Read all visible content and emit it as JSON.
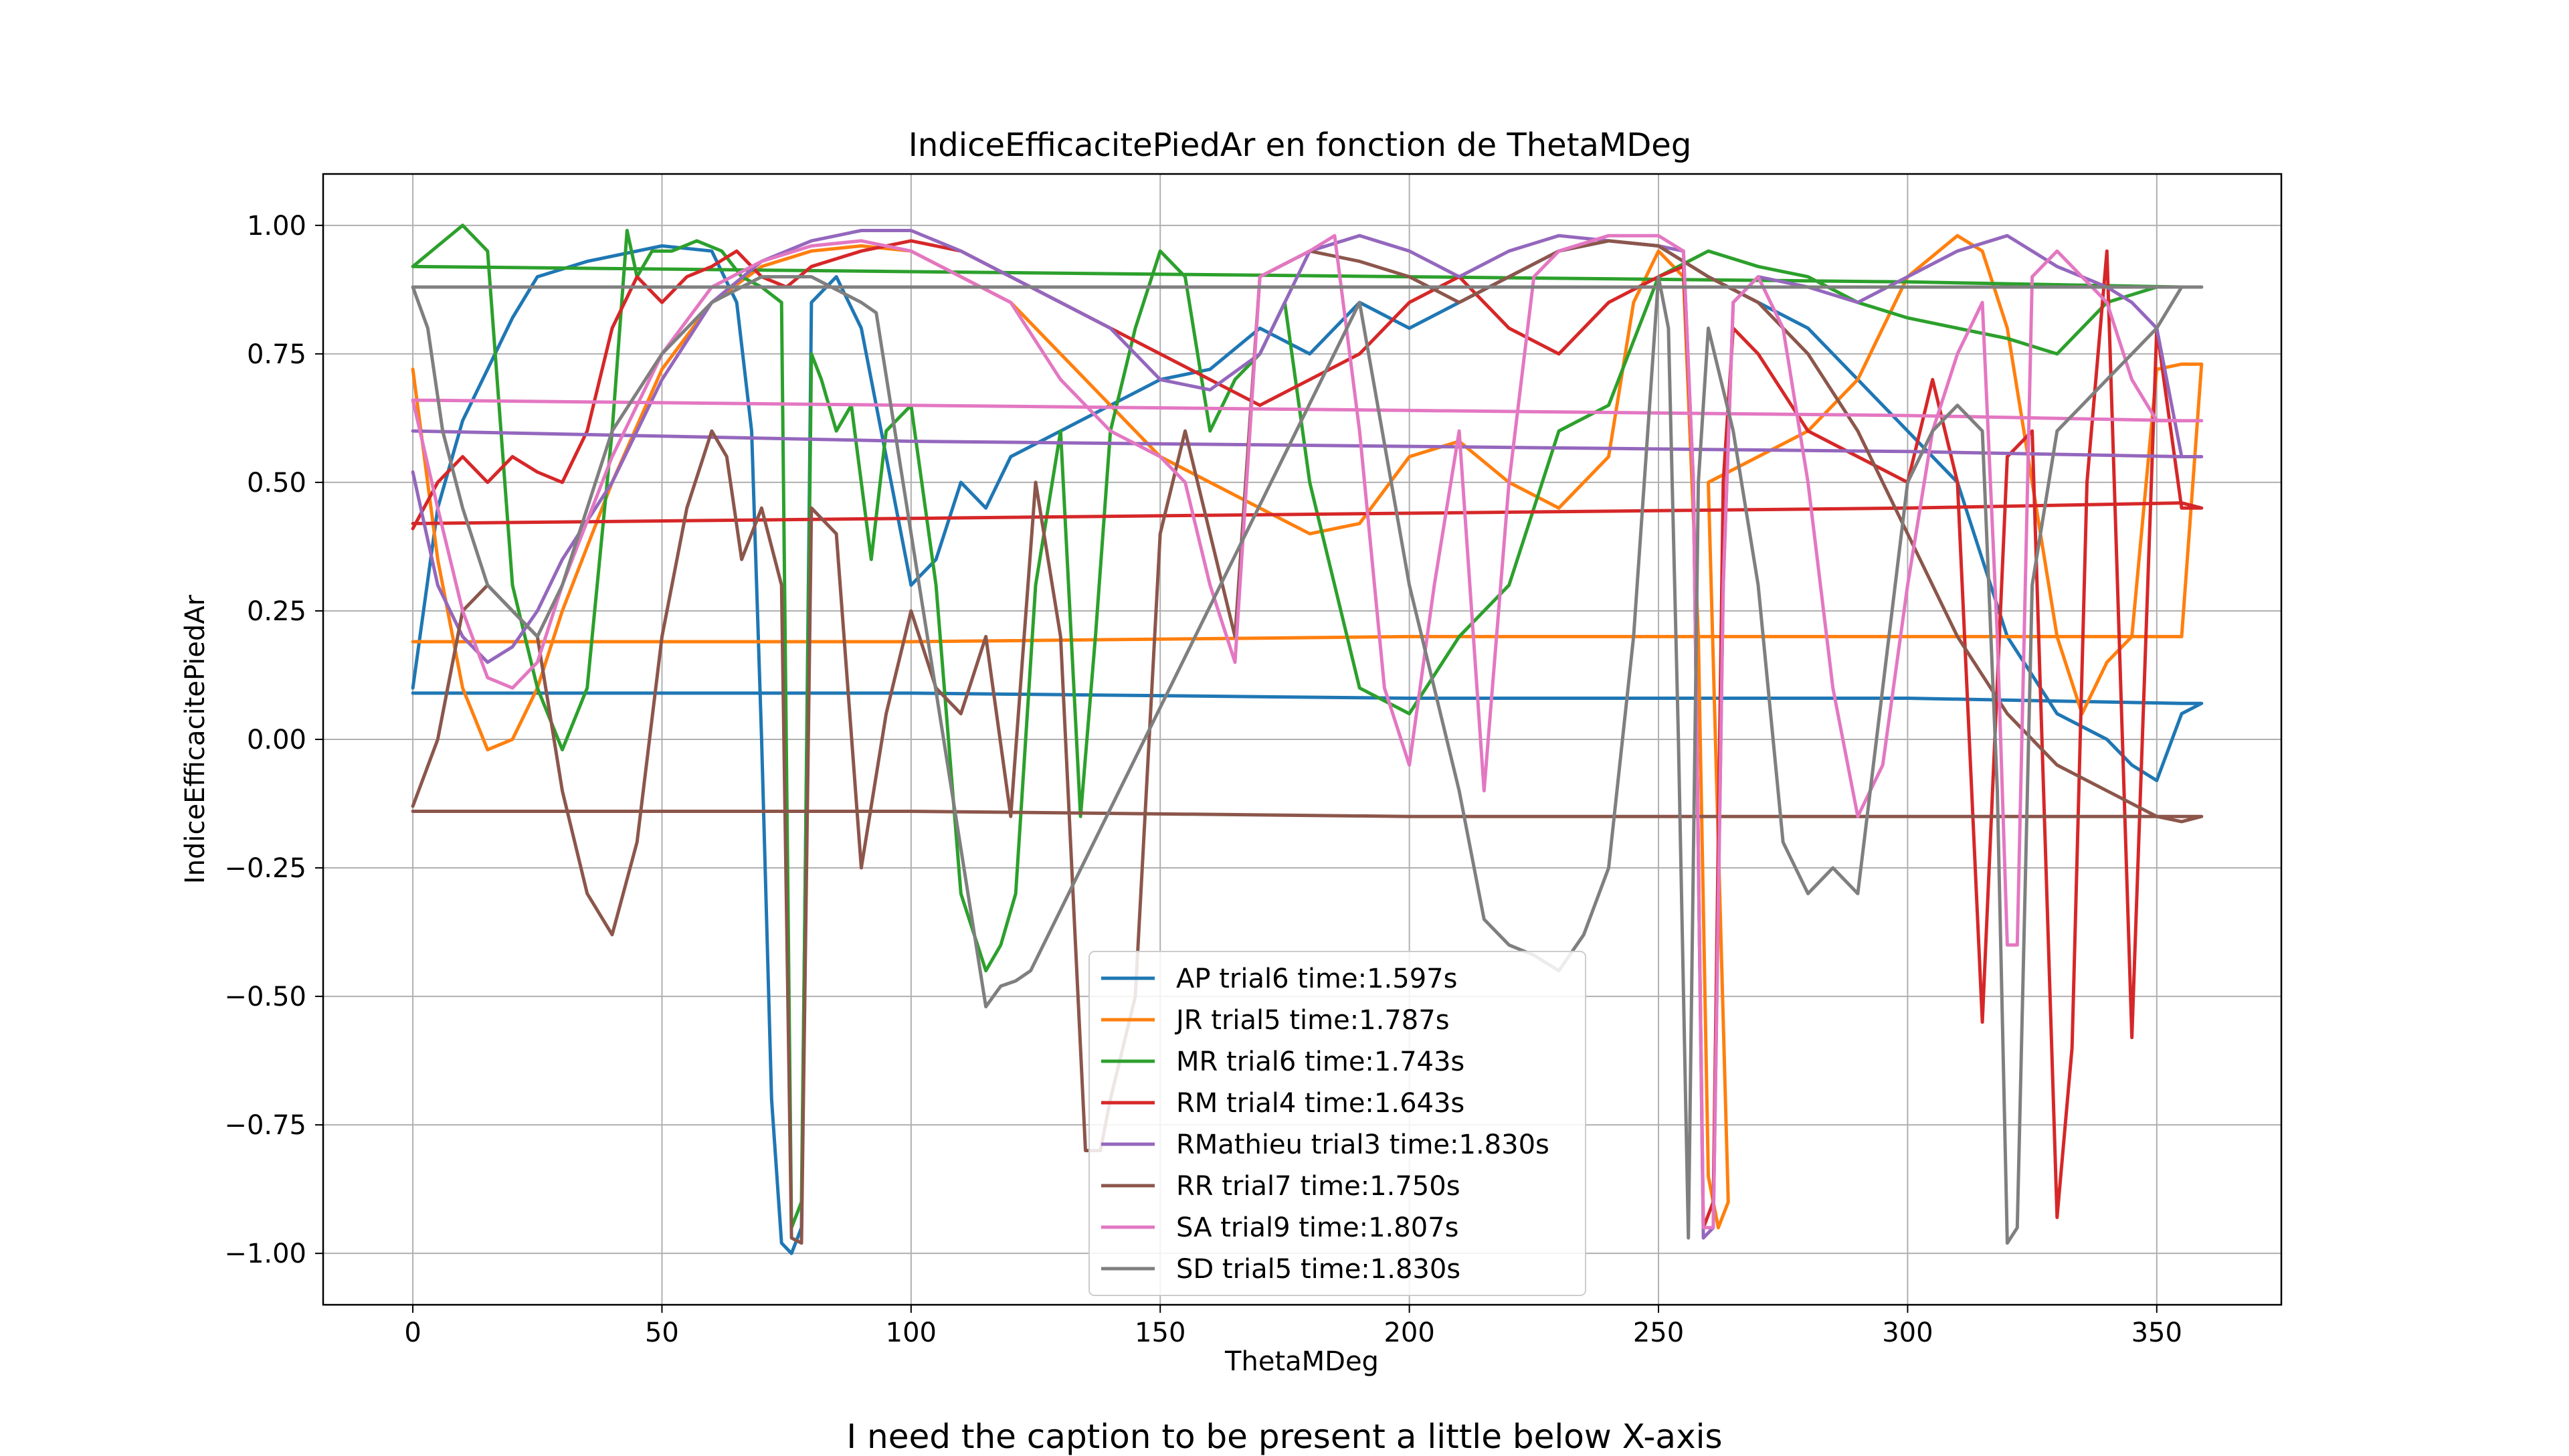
{
  "caption": "I need the caption to be present a little below X-axis",
  "chart_data": {
    "type": "line",
    "title": "IndiceEfficacitePiedAr en fonction de ThetaMDeg",
    "xlabel": "ThetaMDeg",
    "ylabel": "IndiceEfficacitePiedAr",
    "xlim": [
      -18,
      375
    ],
    "ylim": [
      -1.1,
      1.1
    ],
    "xticks": [
      0,
      50,
      100,
      150,
      200,
      250,
      300,
      350
    ],
    "xtick_labels": [
      "0",
      "50",
      "100",
      "150",
      "200",
      "250",
      "300",
      "350"
    ],
    "yticks": [
      -1.0,
      -0.75,
      -0.5,
      -0.25,
      0.0,
      0.25,
      0.5,
      0.75,
      1.0
    ],
    "ytick_labels": [
      "−1.00",
      "−0.75",
      "−0.50",
      "−0.25",
      "0.00",
      "0.25",
      "0.50",
      "0.75",
      "1.00"
    ],
    "grid": true,
    "legend_position": "lower-center",
    "series": [
      {
        "name": "AP trial6 time:1.597s",
        "color": "#1f77b4",
        "x": [
          0,
          5,
          10,
          15,
          20,
          25,
          35,
          50,
          60,
          65,
          68,
          70,
          72,
          74,
          76,
          78,
          80,
          85,
          90,
          95,
          100,
          105,
          110,
          115,
          120,
          130,
          140,
          150,
          160,
          170,
          180,
          190,
          200,
          210,
          220,
          230,
          240,
          250,
          260,
          270,
          280,
          290,
          300,
          310,
          320,
          330,
          340,
          345,
          350,
          355,
          359,
          355,
          300,
          200,
          100,
          0
        ],
        "y": [
          0.1,
          0.45,
          0.62,
          0.72,
          0.82,
          0.9,
          0.93,
          0.96,
          0.95,
          0.85,
          0.6,
          0.0,
          -0.7,
          -0.98,
          -1.0,
          -0.95,
          0.85,
          0.9,
          0.8,
          0.55,
          0.3,
          0.35,
          0.5,
          0.45,
          0.55,
          0.6,
          0.65,
          0.7,
          0.72,
          0.8,
          0.75,
          0.85,
          0.8,
          0.85,
          0.9,
          0.95,
          0.97,
          0.96,
          0.9,
          0.85,
          0.8,
          0.7,
          0.6,
          0.5,
          0.2,
          0.05,
          0.0,
          -0.05,
          -0.08,
          0.05,
          0.07,
          0.07,
          0.08,
          0.08,
          0.09,
          0.09
        ]
      },
      {
        "name": "JR trial5 time:1.787s",
        "color": "#ff7f0e",
        "x": [
          0,
          5,
          10,
          15,
          20,
          25,
          30,
          40,
          50,
          60,
          70,
          80,
          90,
          100,
          110,
          120,
          130,
          140,
          150,
          160,
          170,
          180,
          190,
          200,
          210,
          220,
          230,
          240,
          245,
          250,
          255,
          258,
          260,
          262,
          264,
          260,
          270,
          280,
          290,
          300,
          310,
          315,
          320,
          325,
          330,
          335,
          340,
          345,
          350,
          355,
          359,
          355,
          300,
          200,
          100,
          0
        ],
        "y": [
          0.72,
          0.35,
          0.1,
          -0.02,
          0.0,
          0.1,
          0.25,
          0.5,
          0.72,
          0.85,
          0.92,
          0.95,
          0.96,
          0.95,
          0.9,
          0.85,
          0.75,
          0.65,
          0.55,
          0.5,
          0.45,
          0.4,
          0.42,
          0.55,
          0.58,
          0.5,
          0.45,
          0.55,
          0.85,
          0.95,
          0.9,
          0.2,
          -0.85,
          -0.95,
          -0.9,
          0.5,
          0.55,
          0.6,
          0.7,
          0.9,
          0.98,
          0.95,
          0.8,
          0.5,
          0.2,
          0.05,
          0.15,
          0.2,
          0.72,
          0.73,
          0.73,
          0.2,
          0.2,
          0.2,
          0.19,
          0.19
        ]
      },
      {
        "name": "MR trial6 time:1.743s",
        "color": "#2ca02c",
        "x": [
          0,
          5,
          10,
          15,
          20,
          25,
          30,
          35,
          40,
          43,
          45,
          48,
          52,
          57,
          62,
          66,
          70,
          74,
          76,
          78,
          80,
          82,
          85,
          88,
          92,
          95,
          100,
          105,
          110,
          115,
          118,
          121,
          125,
          130,
          134,
          137,
          140,
          145,
          150,
          155,
          160,
          165,
          170,
          175,
          180,
          190,
          200,
          210,
          220,
          230,
          240,
          250,
          260,
          270,
          280,
          290,
          300,
          310,
          320,
          330,
          340,
          350,
          355,
          359,
          355,
          300,
          200,
          100,
          0
        ],
        "y": [
          0.92,
          0.96,
          1.0,
          0.95,
          0.3,
          0.1,
          -0.02,
          0.1,
          0.6,
          0.99,
          0.9,
          0.95,
          0.95,
          0.97,
          0.95,
          0.9,
          0.88,
          0.85,
          -0.95,
          -0.9,
          0.75,
          0.7,
          0.6,
          0.65,
          0.35,
          0.6,
          0.65,
          0.3,
          -0.3,
          -0.45,
          -0.4,
          -0.3,
          0.3,
          0.6,
          -0.15,
          0.2,
          0.6,
          0.8,
          0.95,
          0.9,
          0.6,
          0.7,
          0.75,
          0.85,
          0.5,
          0.1,
          0.05,
          0.2,
          0.3,
          0.6,
          0.65,
          0.9,
          0.95,
          0.92,
          0.9,
          0.85,
          0.82,
          0.8,
          0.78,
          0.75,
          0.85,
          0.88,
          0.88,
          0.88,
          0.88,
          0.89,
          0.9,
          0.91,
          0.92
        ]
      },
      {
        "name": "RM trial4 time:1.643s",
        "color": "#d62728",
        "x": [
          0,
          5,
          10,
          15,
          20,
          25,
          30,
          35,
          40,
          45,
          50,
          55,
          60,
          65,
          70,
          75,
          80,
          90,
          100,
          110,
          120,
          130,
          140,
          150,
          160,
          170,
          180,
          190,
          200,
          210,
          220,
          230,
          240,
          250,
          255,
          257,
          259,
          261,
          263,
          265,
          270,
          280,
          290,
          300,
          305,
          310,
          315,
          320,
          325,
          330,
          333,
          336,
          340,
          345,
          350,
          355,
          359,
          355,
          300,
          200,
          100,
          0
        ],
        "y": [
          0.41,
          0.5,
          0.55,
          0.5,
          0.55,
          0.52,
          0.5,
          0.6,
          0.8,
          0.9,
          0.85,
          0.9,
          0.92,
          0.95,
          0.9,
          0.88,
          0.92,
          0.95,
          0.97,
          0.95,
          0.9,
          0.85,
          0.8,
          0.75,
          0.7,
          0.65,
          0.7,
          0.75,
          0.85,
          0.9,
          0.8,
          0.75,
          0.85,
          0.9,
          0.92,
          0.5,
          -0.95,
          -0.9,
          0.5,
          0.8,
          0.75,
          0.6,
          0.55,
          0.5,
          0.7,
          0.5,
          -0.55,
          0.55,
          0.6,
          -0.93,
          -0.6,
          0.5,
          0.95,
          -0.58,
          0.8,
          0.45,
          0.45,
          0.46,
          0.45,
          0.44,
          0.43,
          0.42
        ]
      },
      {
        "name": "RMathieu trial3 time:1.830s",
        "color": "#9467bd",
        "x": [
          0,
          5,
          10,
          15,
          20,
          25,
          30,
          40,
          50,
          60,
          70,
          80,
          90,
          100,
          110,
          120,
          130,
          140,
          150,
          160,
          170,
          180,
          190,
          200,
          210,
          220,
          230,
          240,
          250,
          255,
          257,
          259,
          261,
          263,
          265,
          270,
          280,
          290,
          300,
          310,
          320,
          325,
          330,
          335,
          340,
          345,
          350,
          355,
          359,
          355,
          300,
          200,
          100,
          0
        ],
        "y": [
          0.52,
          0.3,
          0.2,
          0.15,
          0.18,
          0.25,
          0.35,
          0.5,
          0.7,
          0.85,
          0.93,
          0.97,
          0.99,
          0.99,
          0.95,
          0.9,
          0.85,
          0.8,
          0.7,
          0.68,
          0.75,
          0.95,
          0.98,
          0.95,
          0.9,
          0.95,
          0.98,
          0.97,
          0.96,
          0.95,
          0.5,
          -0.97,
          -0.95,
          0.3,
          0.85,
          0.9,
          0.88,
          0.85,
          0.9,
          0.95,
          0.98,
          0.95,
          0.92,
          0.9,
          0.88,
          0.85,
          0.8,
          0.55,
          0.55,
          0.55,
          0.56,
          0.57,
          0.58,
          0.6
        ]
      },
      {
        "name": "RR trial7 time:1.750s",
        "color": "#8c564b",
        "x": [
          0,
          5,
          10,
          15,
          20,
          25,
          30,
          35,
          40,
          45,
          50,
          55,
          60,
          63,
          66,
          70,
          74,
          76,
          78,
          80,
          85,
          90,
          95,
          100,
          105,
          110,
          115,
          120,
          125,
          130,
          135,
          138,
          140,
          145,
          150,
          155,
          160,
          165,
          170,
          180,
          190,
          200,
          210,
          220,
          230,
          240,
          250,
          260,
          270,
          280,
          290,
          300,
          310,
          320,
          330,
          340,
          350,
          355,
          359,
          355,
          300,
          200,
          100,
          0
        ],
        "y": [
          -0.13,
          0.0,
          0.25,
          0.3,
          0.25,
          0.2,
          -0.1,
          -0.3,
          -0.38,
          -0.2,
          0.2,
          0.45,
          0.6,
          0.55,
          0.35,
          0.45,
          0.3,
          -0.97,
          -0.98,
          0.45,
          0.4,
          -0.25,
          0.05,
          0.25,
          0.1,
          0.05,
          0.2,
          -0.15,
          0.5,
          0.2,
          -0.8,
          -0.8,
          -0.7,
          -0.5,
          0.4,
          0.6,
          0.4,
          0.2,
          0.9,
          0.95,
          0.93,
          0.9,
          0.85,
          0.9,
          0.95,
          0.97,
          0.96,
          0.9,
          0.85,
          0.75,
          0.6,
          0.4,
          0.2,
          0.05,
          -0.05,
          -0.1,
          -0.15,
          -0.16,
          -0.15,
          -0.15,
          -0.15,
          -0.15,
          -0.14,
          -0.14
        ]
      },
      {
        "name": "SA trial9 time:1.807s",
        "color": "#e377c2",
        "x": [
          0,
          5,
          10,
          15,
          20,
          25,
          30,
          40,
          50,
          60,
          70,
          80,
          90,
          100,
          110,
          120,
          130,
          140,
          150,
          155,
          160,
          165,
          170,
          180,
          185,
          190,
          195,
          200,
          205,
          210,
          215,
          220,
          225,
          230,
          240,
          250,
          255,
          257,
          259,
          261,
          263,
          265,
          270,
          275,
          280,
          285,
          290,
          295,
          300,
          305,
          310,
          315,
          318,
          320,
          322,
          325,
          330,
          335,
          340,
          345,
          350,
          355,
          359,
          355,
          300,
          200,
          100,
          0
        ],
        "y": [
          0.66,
          0.45,
          0.25,
          0.12,
          0.1,
          0.15,
          0.3,
          0.55,
          0.75,
          0.88,
          0.93,
          0.96,
          0.97,
          0.95,
          0.9,
          0.85,
          0.7,
          0.6,
          0.55,
          0.5,
          0.3,
          0.15,
          0.9,
          0.95,
          0.98,
          0.6,
          0.1,
          -0.05,
          0.3,
          0.6,
          -0.1,
          0.5,
          0.9,
          0.95,
          0.98,
          0.98,
          0.95,
          0.5,
          -0.95,
          -0.95,
          0.3,
          0.85,
          0.9,
          0.8,
          0.5,
          0.1,
          -0.15,
          -0.05,
          0.3,
          0.6,
          0.75,
          0.85,
          0.2,
          -0.4,
          -0.4,
          0.9,
          0.95,
          0.9,
          0.85,
          0.7,
          0.62,
          0.62,
          0.62,
          0.62,
          0.63,
          0.64,
          0.65,
          0.66
        ]
      },
      {
        "name": "SD trial5 time:1.830s",
        "color": "#7f7f7f",
        "x": [
          0,
          3,
          6,
          10,
          15,
          20,
          25,
          30,
          40,
          50,
          60,
          70,
          80,
          90,
          93,
          115,
          118,
          121,
          124,
          190,
          200,
          210,
          215,
          220,
          225,
          230,
          235,
          240,
          245,
          250,
          252,
          254,
          256,
          258,
          260,
          265,
          270,
          275,
          280,
          285,
          290,
          295,
          300,
          305,
          310,
          315,
          318,
          320,
          322,
          325,
          330,
          335,
          340,
          345,
          350,
          355,
          359,
          355,
          300,
          200,
          100,
          0
        ],
        "y": [
          0.88,
          0.8,
          0.6,
          0.45,
          0.3,
          0.25,
          0.2,
          0.3,
          0.6,
          0.75,
          0.85,
          0.9,
          0.9,
          0.85,
          0.83,
          -0.52,
          -0.48,
          -0.47,
          -0.45,
          0.85,
          0.3,
          -0.1,
          -0.35,
          -0.4,
          -0.42,
          -0.45,
          -0.38,
          -0.25,
          0.2,
          0.9,
          0.8,
          0.0,
          -0.97,
          0.5,
          0.8,
          0.6,
          0.3,
          -0.2,
          -0.3,
          -0.25,
          -0.3,
          0.1,
          0.5,
          0.6,
          0.65,
          0.6,
          -0.1,
          -0.98,
          -0.95,
          0.3,
          0.6,
          0.65,
          0.7,
          0.75,
          0.8,
          0.88,
          0.88,
          0.88,
          0.88,
          0.88,
          0.88,
          0.88
        ]
      }
    ]
  }
}
